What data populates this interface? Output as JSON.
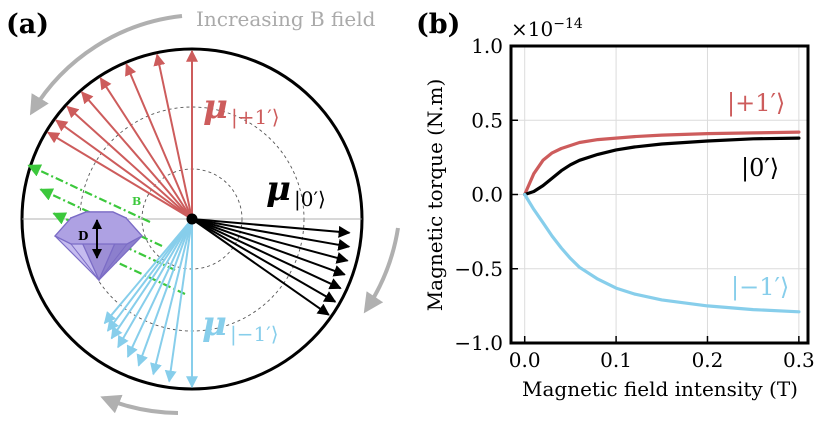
{
  "panel_a": {
    "label": "(a)",
    "rotation_label": "Increasing B field",
    "mu_symbol": "μ",
    "state_plus": "|+1′⟩",
    "state_zero": "|0′⟩",
    "state_minus": "|−1′⟩",
    "b_label": "B",
    "d_label": "D",
    "colors": {
      "plus": "#cd5c5c",
      "zero": "#000000",
      "minus": "#87ceeb",
      "field": "#3cc83c",
      "diamond": "#9d8fd6",
      "rotation_arrow": "#b0b0b0"
    },
    "arrow_angles_deg": {
      "plus": [
        90,
        102,
        113,
        123,
        131,
        138,
        144,
        149
      ],
      "zero": [
        -5,
        -10,
        -15,
        -20,
        -25,
        -30,
        -35
      ],
      "minus": [
        -90,
        -98,
        -104,
        -110,
        -115,
        -120,
        -124,
        -127,
        -130
      ]
    },
    "b_field_angle_deg": 155
  },
  "panel_b": {
    "label": "(b)",
    "scale_label": "×10",
    "scale_exponent": "−14",
    "curve_labels": {
      "plus": "|+1′⟩",
      "zero": "|0′⟩",
      "minus": "|−1′⟩"
    }
  },
  "chart_data": {
    "type": "line",
    "title": "",
    "xlabel": "Magnetic field intensity (T)",
    "ylabel": "Magnetic torque (N.m)",
    "xlim": [
      -0.015,
      0.31
    ],
    "ylim": [
      -1.0,
      1.0
    ],
    "y_scale_factor": "1e-14",
    "xticks": [
      0.0,
      0.1,
      0.2,
      0.3
    ],
    "xtick_labels": [
      "0.0",
      "0.1",
      "0.2",
      "0.3"
    ],
    "yticks": [
      -1.0,
      -0.5,
      0.0,
      0.5,
      1.0
    ],
    "ytick_labels": [
      "−1.0",
      "−0.5",
      "0.0",
      "0.5",
      "1.0"
    ],
    "grid": true,
    "x": [
      0,
      0.01,
      0.02,
      0.03,
      0.04,
      0.05,
      0.06,
      0.08,
      0.1,
      0.12,
      0.15,
      0.2,
      0.25,
      0.3
    ],
    "series": [
      {
        "name": "|+1′⟩",
        "color": "#cd5c5c",
        "values": [
          0,
          0.14,
          0.23,
          0.28,
          0.31,
          0.33,
          0.35,
          0.37,
          0.38,
          0.39,
          0.4,
          0.41,
          0.415,
          0.42
        ]
      },
      {
        "name": "|0′⟩",
        "color": "#000000",
        "values": [
          0,
          0.02,
          0.06,
          0.11,
          0.16,
          0.2,
          0.23,
          0.27,
          0.3,
          0.32,
          0.34,
          0.36,
          0.375,
          0.38
        ]
      },
      {
        "name": "|−1′⟩",
        "color": "#87ceeb",
        "values": [
          0,
          -0.1,
          -0.19,
          -0.28,
          -0.36,
          -0.43,
          -0.49,
          -0.57,
          -0.63,
          -0.67,
          -0.71,
          -0.75,
          -0.775,
          -0.79
        ]
      }
    ]
  }
}
